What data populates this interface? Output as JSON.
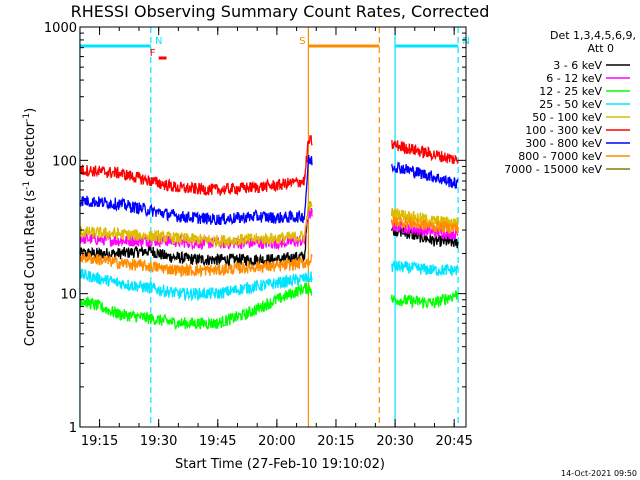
{
  "chart_data": {
    "type": "line",
    "title": "RHESSI Observing Summary Count Rates, Corrected",
    "xlabel": "Start Time (27-Feb-10 19:10:02)",
    "ylabel_main": "Corrected Count Rate (s",
    "ylabel_sup1": "-1",
    "ylabel_mid": " detector",
    "ylabel_sup2": "-1",
    "ylabel_end": ")",
    "y_scale": "log",
    "ylim": [
      1,
      1000
    ],
    "xlim": [
      "19:10",
      "20:48"
    ],
    "x_ticks": [
      "19:15",
      "19:30",
      "19:45",
      "20:00",
      "20:15",
      "20:30",
      "20:45"
    ],
    "y_ticks": [
      "1",
      "10",
      "100",
      "1000"
    ],
    "timestamp": "14-Oct-2021 09:50",
    "legend": {
      "header_line1": "Det 1,3,4,5,6,9,",
      "header_line2": "Att 0",
      "placement": "right-outside"
    },
    "flags": [
      {
        "label": "N",
        "color": "#00e5ff",
        "times": [
          "19:10",
          "19:28"
        ],
        "level": "top"
      },
      {
        "label": "N",
        "color": "#00e5ff",
        "times": [
          "20:30",
          "20:46"
        ],
        "level": "top"
      },
      {
        "label": "F",
        "color": "#ff0000",
        "times": [
          "19:30",
          "19:32"
        ],
        "level": "second"
      },
      {
        "label": "S",
        "color": "#ff8c00",
        "times": [
          "20:08",
          "20:26"
        ],
        "level": "top"
      }
    ],
    "markers": [
      {
        "time": "19:10",
        "color": "#00e5ff",
        "style": "solid"
      },
      {
        "time": "19:28",
        "color": "#00e5ff",
        "style": "dashed"
      },
      {
        "time": "20:08",
        "color": "#ff8c00",
        "style": "solid"
      },
      {
        "time": "20:26",
        "color": "#ff8c00",
        "style": "dashed"
      },
      {
        "time": "20:30",
        "color": "#00e5ff",
        "style": "solid"
      },
      {
        "time": "20:46",
        "color": "#00e5ff",
        "style": "dashed"
      }
    ],
    "data_gap": [
      "20:09",
      "20:29"
    ],
    "series": [
      {
        "name": "3 - 6 keV",
        "color": "#000000",
        "x": [
          "19:10",
          "19:20",
          "19:28",
          "19:32",
          "19:40",
          "19:50",
          "20:00",
          "20:07",
          "20:08",
          "20:30",
          "20:40",
          "20:46"
        ],
        "y": [
          20,
          20,
          21,
          19,
          18,
          18,
          18,
          19,
          45,
          30,
          25,
          24
        ]
      },
      {
        "name": "6 - 12 keV",
        "color": "#ff00ff",
        "x": [
          "19:10",
          "19:20",
          "19:28",
          "19:32",
          "19:40",
          "19:50",
          "20:00",
          "20:07",
          "20:08",
          "20:30",
          "20:40",
          "20:46"
        ],
        "y": [
          26,
          25,
          25,
          25,
          24,
          24,
          24,
          25,
          40,
          32,
          29,
          28
        ]
      },
      {
        "name": "12 - 25 keV",
        "color": "#00ff00",
        "x": [
          "19:10",
          "19:15",
          "19:20",
          "19:28",
          "19:35",
          "19:45",
          "19:52",
          "20:00",
          "20:07",
          "20:30",
          "20:40",
          "20:46"
        ],
        "y": [
          9,
          8,
          7,
          6.5,
          6,
          6,
          7,
          9,
          11,
          9,
          8.5,
          10
        ]
      },
      {
        "name": "25 - 50 keV",
        "color": "#00e5ff",
        "x": [
          "19:10",
          "19:20",
          "19:28",
          "19:35",
          "19:45",
          "19:52",
          "20:00",
          "20:07",
          "20:30",
          "20:40",
          "20:46"
        ],
        "y": [
          14,
          12,
          11,
          10,
          10,
          11,
          12,
          13,
          16,
          15,
          15
        ]
      },
      {
        "name": "50 - 100 keV",
        "color": "#ddbb00",
        "x": [
          "19:10",
          "19:20",
          "19:28",
          "19:35",
          "19:45",
          "20:00",
          "20:07",
          "20:08",
          "20:30",
          "20:40",
          "20:46"
        ],
        "y": [
          29,
          28,
          27,
          26,
          25,
          26,
          27,
          45,
          40,
          35,
          34
        ]
      },
      {
        "name": "100 - 300 keV",
        "color": "#ff0000",
        "x": [
          "19:10",
          "19:20",
          "19:28",
          "19:35",
          "19:45",
          "19:55",
          "20:00",
          "20:07",
          "20:08",
          "20:30",
          "20:40",
          "20:46"
        ],
        "y": [
          85,
          80,
          70,
          62,
          60,
          63,
          65,
          70,
          140,
          130,
          110,
          100
        ]
      },
      {
        "name": "300 - 800 keV",
        "color": "#0000ff",
        "x": [
          "19:10",
          "19:20",
          "19:28",
          "19:35",
          "19:45",
          "19:55",
          "20:00",
          "20:07",
          "20:08",
          "20:30",
          "20:40",
          "20:46"
        ],
        "y": [
          50,
          47,
          42,
          38,
          36,
          38,
          37,
          38,
          100,
          90,
          75,
          66
        ]
      },
      {
        "name": "800 - 7000 keV",
        "color": "#ff8c00",
        "x": [
          "19:10",
          "19:20",
          "19:28",
          "19:35",
          "19:45",
          "19:55",
          "20:00",
          "20:07",
          "20:30",
          "20:40",
          "20:46"
        ],
        "y": [
          19,
          17,
          16,
          15,
          15,
          16,
          16,
          17,
          35,
          32,
          31
        ]
      },
      {
        "name": "7000 - 15000 keV",
        "color": "#808000",
        "x": [],
        "y": []
      }
    ]
  }
}
